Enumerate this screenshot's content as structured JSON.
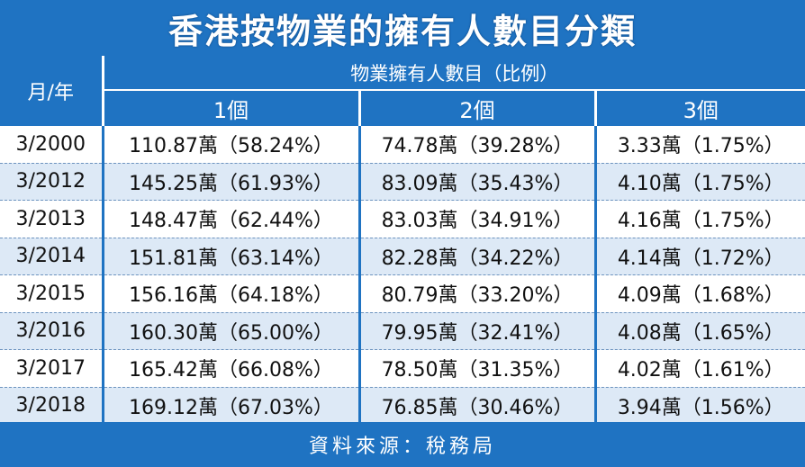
{
  "title": "香港按物業的擁有人數目分類",
  "header": {
    "month_year": "月/年",
    "group": "物業擁有人數目（比例）",
    "columns": [
      "1個",
      "2個",
      "3個"
    ]
  },
  "rows": [
    {
      "period": "3/2000",
      "one": "110.87萬（58.24%）",
      "two": "74.78萬（39.28%）",
      "three": "3.33萬（1.75%）"
    },
    {
      "period": "3/2012",
      "one": "145.25萬（61.93%）",
      "two": "83.09萬（35.43%）",
      "three": "4.10萬（1.75%）"
    },
    {
      "period": "3/2013",
      "one": "148.47萬（62.44%）",
      "two": "83.03萬（34.91%）",
      "three": "4.16萬（1.75%）"
    },
    {
      "period": "3/2014",
      "one": "151.81萬（63.14%）",
      "two": "82.28萬（34.22%）",
      "three": "4.14萬（1.72%）"
    },
    {
      "period": "3/2015",
      "one": "156.16萬（64.18%）",
      "two": "80.79萬（33.20%）",
      "three": "4.09萬（1.68%）"
    },
    {
      "period": "3/2016",
      "one": "160.30萬（65.00%）",
      "two": "79.95萬（32.41%）",
      "three": "4.08萬（1.65%）"
    },
    {
      "period": "3/2017",
      "one": "165.42萬（66.08%）",
      "two": "78.50萬（31.35%）",
      "three": "4.02萬（1.61%）"
    },
    {
      "period": "3/2018",
      "one": "169.12萬（67.03%）",
      "two": "76.85萬（30.46%）",
      "three": "3.94萬（1.56%）"
    }
  ],
  "footer": "資料來源：稅務局",
  "colors": {
    "header_blue": "#1f73c2",
    "row_alt": "#dde9f6"
  }
}
